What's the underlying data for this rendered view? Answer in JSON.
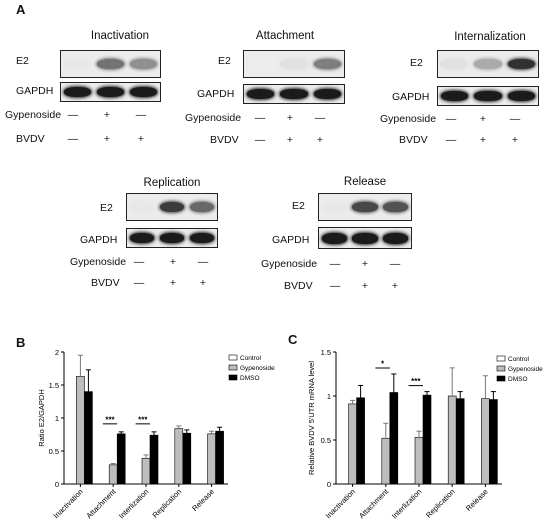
{
  "panel_a": {
    "letter": "A",
    "row_labels": {
      "e2": "E2",
      "gapdh": "GAPDH",
      "gypenoside": "Gypenoside",
      "bvdv": "BVDV"
    },
    "blots": [
      {
        "title": "Inactivation",
        "gypenoside": [
          "—",
          "+",
          "—"
        ],
        "bvdv": [
          "—",
          "+",
          "+"
        ],
        "e2_intensity": [
          0.02,
          0.55,
          0.42
        ],
        "gapdh_intensity": [
          0.95,
          0.95,
          0.95
        ]
      },
      {
        "title": "Attachment",
        "gypenoside": [
          "—",
          "+",
          "—"
        ],
        "bvdv": [
          "—",
          "+",
          "+"
        ],
        "e2_intensity": [
          0.0,
          0.05,
          0.5
        ],
        "gapdh_intensity": [
          0.95,
          0.95,
          0.95
        ]
      },
      {
        "title": "Internalization",
        "gypenoside": [
          "—",
          "+",
          "—"
        ],
        "bvdv": [
          "—",
          "+",
          "+"
        ],
        "e2_intensity": [
          0.05,
          0.3,
          0.85
        ],
        "gapdh_intensity": [
          0.95,
          0.95,
          0.95
        ]
      },
      {
        "title": "Replication",
        "gypenoside": [
          "—",
          "+",
          "—"
        ],
        "bvdv": [
          "—",
          "+",
          "+"
        ],
        "e2_intensity": [
          0.02,
          0.8,
          0.6
        ],
        "gapdh_intensity": [
          0.95,
          0.95,
          0.95
        ]
      },
      {
        "title": "Release",
        "gypenoside": [
          "—",
          "+",
          "—"
        ],
        "bvdv": [
          "—",
          "+",
          "+"
        ],
        "e2_intensity": [
          0.02,
          0.75,
          0.7
        ],
        "gapdh_intensity": [
          0.95,
          0.95,
          0.95
        ]
      }
    ]
  },
  "chart_data": [
    {
      "type": "bar",
      "panel": "B",
      "categories": [
        "Inactivation",
        "Attachment",
        "Interlization",
        "Replication",
        "Release"
      ],
      "ylabel": "Ratio E2/GAPDH",
      "ylim": [
        0,
        2.0
      ],
      "yticks": [
        0,
        0.5,
        1.0,
        1.5,
        2.0
      ],
      "legend_position": "top-right",
      "series": [
        {
          "name": "Control",
          "color": "#ffffff",
          "values": [
            null,
            null,
            null,
            null,
            null
          ],
          "errors": [
            null,
            null,
            null,
            null,
            null
          ]
        },
        {
          "name": "Gypenoside",
          "color": "#bdbdbd",
          "values": [
            1.63,
            0.29,
            0.39,
            0.84,
            0.76
          ],
          "errors": [
            0.32,
            0.02,
            0.05,
            0.04,
            0.04
          ]
        },
        {
          "name": "DMSO",
          "color": "#000000",
          "values": [
            1.4,
            0.76,
            0.74,
            0.77,
            0.8
          ],
          "errors": [
            0.33,
            0.03,
            0.05,
            0.05,
            0.06
          ]
        }
      ],
      "significance": [
        {
          "category": "Attachment",
          "label": "***"
        },
        {
          "category": "Interlization",
          "label": "***"
        }
      ]
    },
    {
      "type": "bar",
      "panel": "C",
      "categories": [
        "Inactivation",
        "Attachment",
        "Interlization",
        "Replication",
        "Release"
      ],
      "ylabel": "Relative BVDV 5'UTR mRNA level",
      "ylim": [
        0,
        1.5
      ],
      "yticks": [
        0,
        0.5,
        1.0,
        1.5
      ],
      "legend_position": "top-right",
      "series": [
        {
          "name": "Control",
          "color": "#ffffff",
          "values": [
            null,
            null,
            null,
            null,
            null
          ],
          "errors": [
            null,
            null,
            null,
            null,
            null
          ]
        },
        {
          "name": "Gypenoside",
          "color": "#bdbdbd",
          "values": [
            0.91,
            0.52,
            0.53,
            1.0,
            0.97
          ],
          "errors": [
            0.04,
            0.17,
            0.07,
            0.32,
            0.26
          ]
        },
        {
          "name": "DMSO",
          "color": "#000000",
          "values": [
            0.98,
            1.04,
            1.01,
            0.97,
            0.96
          ],
          "errors": [
            0.14,
            0.21,
            0.04,
            0.08,
            0.09
          ]
        }
      ],
      "significance": [
        {
          "category": "Attachment",
          "label": "*"
        },
        {
          "category": "Interlization",
          "label": "***"
        }
      ]
    }
  ],
  "panel_b_letter": "B",
  "panel_c_letter": "C"
}
